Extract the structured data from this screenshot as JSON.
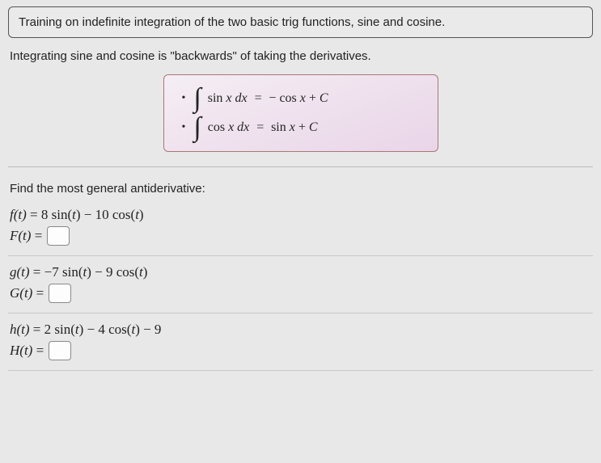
{
  "header": {
    "title": "Training on indefinite integration of the two basic trig functions, sine and cosine."
  },
  "intro": "Integrating sine and cosine is \"backwards\" of taking the derivatives.",
  "formulas": {
    "row1_lhs": "sin x dx",
    "row1_rhs": "− cos x + C",
    "row2_lhs": "cos x dx",
    "row2_rhs": "sin x + C"
  },
  "prompt": "Find the most general antiderivative:",
  "problems": [
    {
      "f_label": "f(t)",
      "f_expr": "8 sin(t) − 10 cos(t)",
      "F_label": "F(t)",
      "F_value": ""
    },
    {
      "f_label": "g(t)",
      "f_expr": "−7 sin(t) − 9 cos(t)",
      "F_label": "G(t)",
      "F_value": ""
    },
    {
      "f_label": "h(t)",
      "f_expr": "2 sin(t) − 4 cos(t) − 9",
      "F_label": "H(t)",
      "F_value": ""
    }
  ],
  "colors": {
    "page_bg": "#e8e8e8",
    "header_border": "#555555",
    "formula_border": "#aa7777",
    "formula_bg_start": "#f5eef4",
    "formula_bg_end": "#e9d5e8",
    "input_border": "#888888",
    "separator": "#bbbbbb"
  }
}
